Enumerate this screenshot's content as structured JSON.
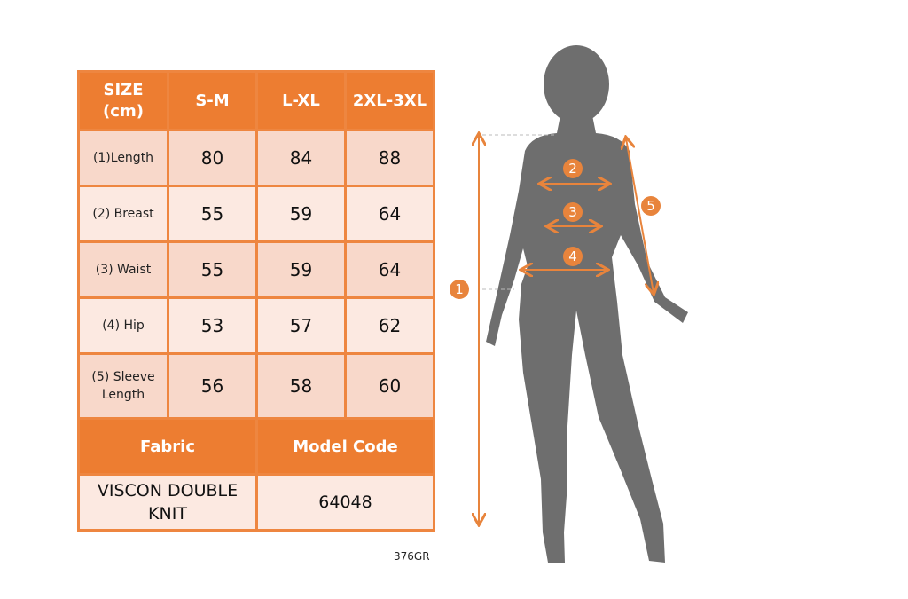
{
  "table": {
    "header": [
      "SIZE (cm)",
      "S-M",
      "L-XL",
      "2XL-3XL"
    ],
    "rows": [
      {
        "label": "(1)Length",
        "values": [
          "80",
          "84",
          "88"
        ]
      },
      {
        "label": "(2) Breast",
        "values": [
          "55",
          "59",
          "64"
        ]
      },
      {
        "label": "(3) Waist",
        "values": [
          "55",
          "59",
          "64"
        ]
      },
      {
        "label": "(4) Hip",
        "values": [
          "53",
          "57",
          "62"
        ]
      },
      {
        "label": "(5) Sleeve Length",
        "values": [
          "56",
          "58",
          "60"
        ]
      }
    ],
    "fabric_label": "Fabric",
    "model_code_label": "Model Code",
    "fabric_value": "VISCON DOUBLE KNIT",
    "model_code_value": "64048"
  },
  "footer_code": "376GR",
  "figure": {
    "markers": [
      "1",
      "2",
      "3",
      "4",
      "5"
    ]
  },
  "colors": {
    "accent": "#ED7D31",
    "row_dark": "#F8D8CA",
    "row_light": "#FCE9E1",
    "silhouette": "#6E6E6E"
  }
}
